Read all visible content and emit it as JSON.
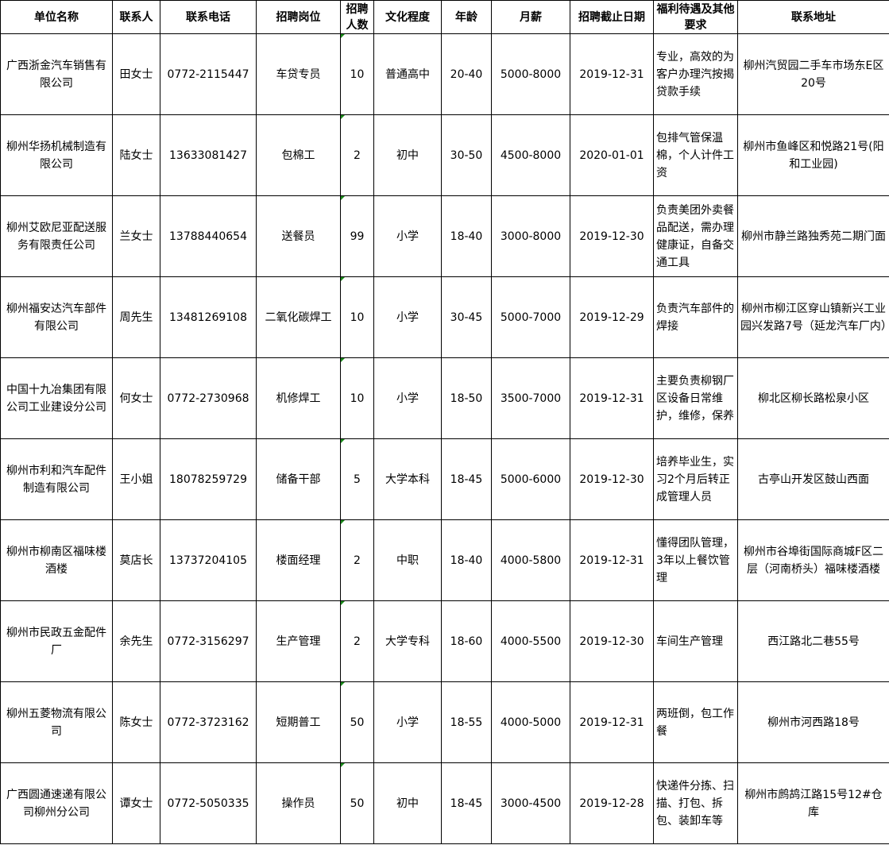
{
  "headers": [
    "单位名称",
    "联系人",
    "联系电话",
    "招聘岗位",
    "招聘人数",
    "文化程度",
    "年龄",
    "月薪",
    "招聘截止日期",
    "福利待遇及其他要求",
    "联系地址"
  ],
  "rows": [
    {
      "company": "广西浙金汽车销售有限公司",
      "contact": "田女士",
      "phone": "0772-2115447",
      "position": "车贷专员",
      "count": "10",
      "education": "普通高中",
      "age": "20-40",
      "salary": "5000-8000",
      "deadline": "2019-12-31",
      "benefits": "专业，高效的为客户办理汽按揭贷款手续",
      "address": "柳州汽贸园二手车市场东E区20号"
    },
    {
      "company": "柳州华扬机械制造有限公司",
      "contact": "陆女士",
      "phone": "13633081427",
      "position": "包棉工",
      "count": "2",
      "education": "初中",
      "age": "30-50",
      "salary": "4500-8000",
      "deadline": "2020-01-01",
      "benefits": "包排气管保温棉，个人计件工资",
      "address": "柳州市鱼峰区和悦路21号(阳和工业园)"
    },
    {
      "company": "柳州艾欧尼亚配送服务有限责任公司",
      "contact": "兰女士",
      "phone": "13788440654",
      "position": "送餐员",
      "count": "99",
      "education": "小学",
      "age": "18-40",
      "salary": "3000-8000",
      "deadline": "2019-12-30",
      "benefits": "负责美团外卖餐品配送，需办理健康证，自备交通工具",
      "address": "柳州市静兰路独秀苑二期门面"
    },
    {
      "company": "柳州福安达汽车部件有限公司",
      "contact": "周先生",
      "phone": "13481269108",
      "position": "二氧化碳焊工",
      "count": "10",
      "education": "小学",
      "age": "30-45",
      "salary": "5000-7000",
      "deadline": "2019-12-29",
      "benefits": "负责汽车部件的焊接",
      "address": "柳州市柳江区穿山镇新兴工业园兴发路7号（延龙汽车厂内）"
    },
    {
      "company": "中国十九冶集团有限公司工业建设分公司",
      "contact": "何女士",
      "phone": "0772-2730968",
      "position": "机修焊工",
      "count": "10",
      "education": "小学",
      "age": "18-50",
      "salary": "3500-7000",
      "deadline": "2019-12-31",
      "benefits": "主要负责柳钢厂区设备日常维护，维修，保养",
      "address": "柳北区柳长路松泉小区"
    },
    {
      "company": "柳州市利和汽车配件制造有限公司",
      "contact": "王小姐",
      "phone": "18078259729",
      "position": "储备干部",
      "count": "5",
      "education": "大学本科",
      "age": "18-45",
      "salary": "5000-6000",
      "deadline": "2019-12-30",
      "benefits": "培养毕业生，实习2个月后转正成管理人员",
      "address": "古亭山开发区鼓山西面"
    },
    {
      "company": "柳州市柳南区福味楼酒楼",
      "contact": "莫店长",
      "phone": "13737204105",
      "position": "楼面经理",
      "count": "2",
      "education": "中职",
      "age": "18-40",
      "salary": "4000-5800",
      "deadline": "2019-12-31",
      "benefits": "懂得团队管理，3年以上餐饮管理",
      "address": "柳州市谷埠街国际商城F区二层（河南桥头）福味楼酒楼"
    },
    {
      "company": "柳州市民政五金配件厂",
      "contact": "余先生",
      "phone": "0772-3156297",
      "position": "生产管理",
      "count": "2",
      "education": "大学专科",
      "age": "18-60",
      "salary": "4000-5500",
      "deadline": "2019-12-30",
      "benefits": "车间生产管理",
      "address": "西江路北二巷55号"
    },
    {
      "company": "柳州五菱物流有限公司",
      "contact": "陈女士",
      "phone": "0772-3723162",
      "position": "短期普工",
      "count": "50",
      "education": "小学",
      "age": "18-55",
      "salary": "4000-5000",
      "deadline": "2019-12-31",
      "benefits": "两班倒，包工作餐",
      "address": "柳州市河西路18号"
    },
    {
      "company": "广西圆通速递有限公司柳州分公司",
      "contact": "谭女士",
      "phone": "0772-5050335",
      "position": "操作员",
      "count": "50",
      "education": "初中",
      "age": "18-45",
      "salary": "3000-4500",
      "deadline": "2019-12-28",
      "benefits": "快递件分拣、扫描、打包、拆包、装卸车等",
      "address": "柳州市鹧鸪江路15号12#仓库"
    }
  ]
}
